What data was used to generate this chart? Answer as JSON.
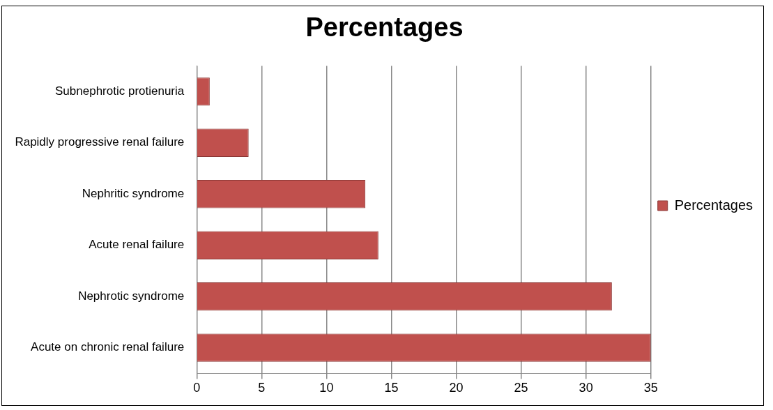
{
  "chart_data": {
    "type": "bar",
    "orientation": "horizontal",
    "title": "Percentages",
    "categories": [
      "Subnephrotic protienuria",
      "Rapidly progressive renal failure",
      "Nephritic syndrome",
      "Acute renal failure",
      "Nephrotic syndrome",
      "Acute on chronic renal failure"
    ],
    "series": [
      {
        "name": "Percentages",
        "color": "#c0504d",
        "values": [
          1,
          4,
          13,
          14,
          32,
          35
        ]
      }
    ],
    "xlim": [
      0,
      35
    ],
    "xticks": [
      0,
      5,
      10,
      15,
      20,
      25,
      30,
      35
    ],
    "grid": "x",
    "legend": "right"
  }
}
